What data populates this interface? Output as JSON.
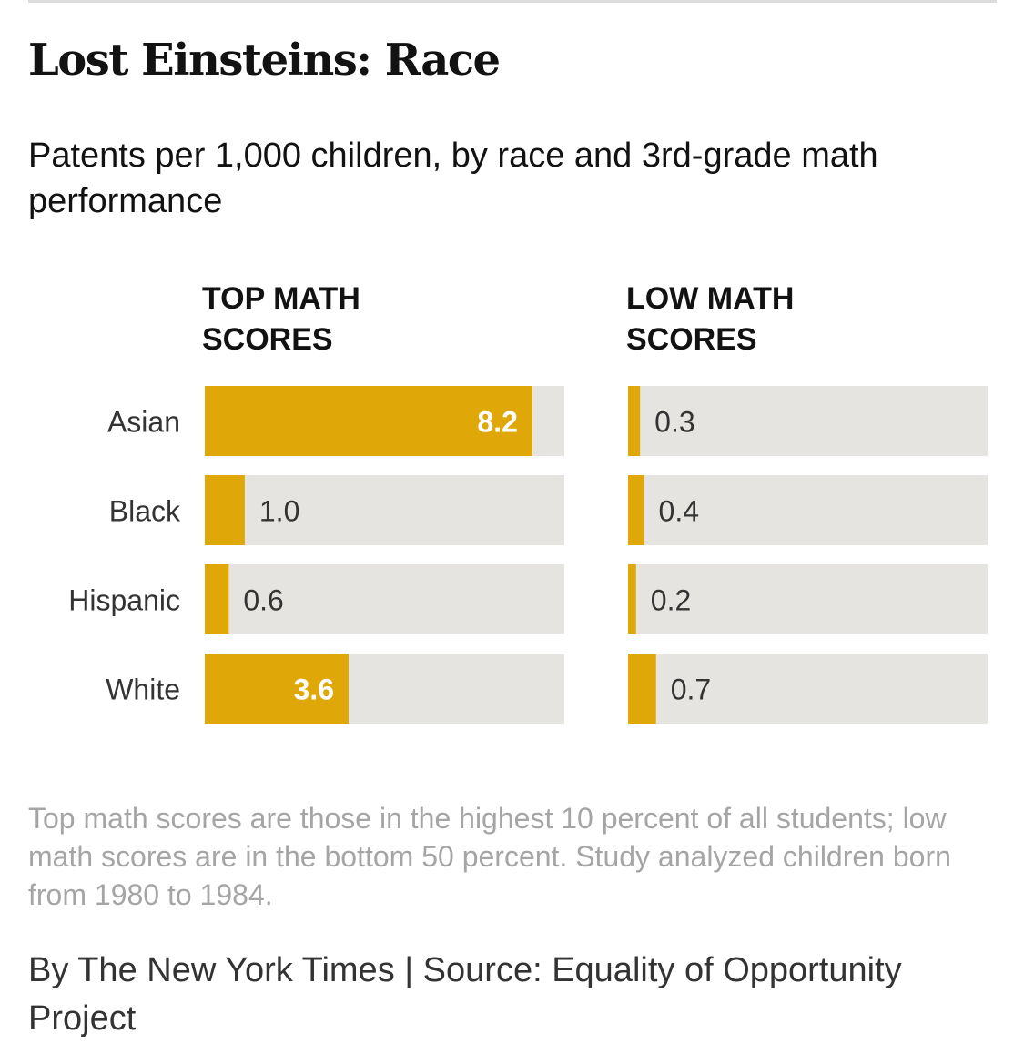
{
  "chart_data": {
    "type": "bar",
    "orientation": "horizontal",
    "title": "Lost Einsteins: Race",
    "subtitle": "Patents per 1,000 children, by race and 3rd-grade math performance",
    "categories": [
      "Asian",
      "Black",
      "Hispanic",
      "White"
    ],
    "series": [
      {
        "name": "TOP MATH SCORES",
        "values": [
          8.2,
          1.0,
          0.6,
          3.6
        ],
        "labels": [
          "8.2",
          "1.0",
          "0.6",
          "3.6"
        ]
      },
      {
        "name": "LOW MATH SCORES",
        "values": [
          0.3,
          0.4,
          0.2,
          0.7
        ],
        "labels": [
          "0.3",
          "0.4",
          "0.2",
          "0.7"
        ]
      }
    ],
    "xlim": [
      0,
      9
    ],
    "grid": false,
    "legend": "none",
    "colors": {
      "bar": "#e0a709",
      "track": "#e5e4e1",
      "label_inside": "#ffffff",
      "label_outside": "#333333"
    }
  },
  "note": "Top math scores are those in the highest 10 percent of all students; low math scores are in the bottom 50 percent. Study analyzed children born from 1980 to 1984.",
  "credit": "By The New York Times | Source: Equality of Opportunity Project"
}
